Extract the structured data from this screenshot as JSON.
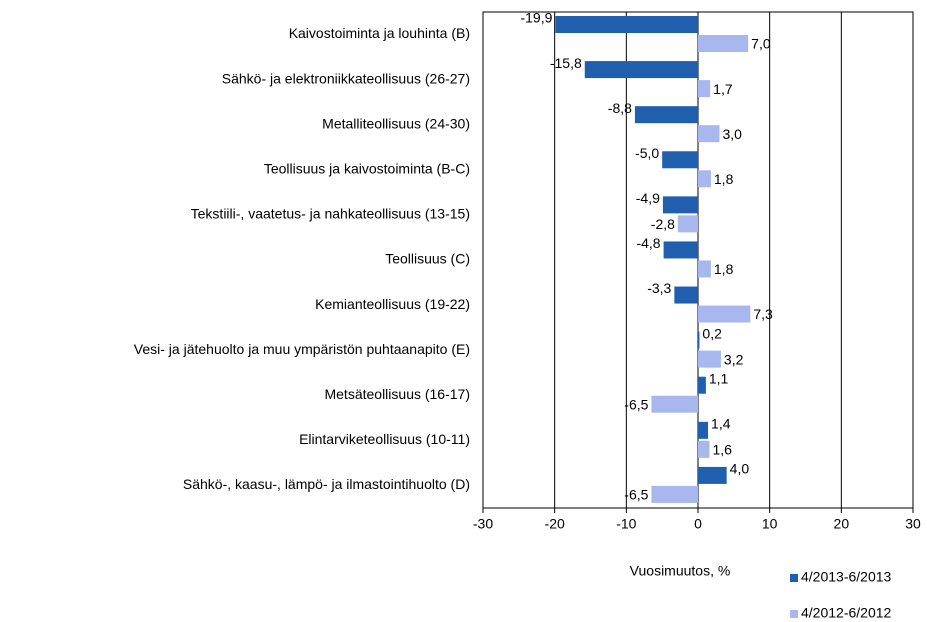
{
  "chart_data": {
    "type": "bar",
    "orientation": "horizontal",
    "categories": [
      "Kaivostoiminta ja louhinta (B)",
      "Sähkö- ja elektroniikkateollisuus (26-27)",
      "Metalliteollisuus (24-30)",
      "Teollisuus ja kaivostoiminta (B-C)",
      "Tekstiili-, vaatetus- ja nahkateollisuus (13-15)",
      "Teollisuus (C)",
      "Kemianteollisuus (19-22)",
      "Vesi- ja jätehuolto ja muu ympäristön puhtaanapito (E)",
      "Metsäteollisuus (16-17)",
      "Elintarviketeollisuus (10-11)",
      "Sähkö-, kaasu-, lämpö- ja ilmastointihuolto (D)"
    ],
    "series": [
      {
        "name": "4/2013-6/2013",
        "color": "#1f5fae",
        "values": [
          -19.9,
          -15.8,
          -8.8,
          -5.0,
          -4.9,
          -4.8,
          -3.3,
          0.2,
          1.1,
          1.4,
          4.0
        ],
        "value_labels": [
          "-19,9",
          "-15,8",
          "-8,8",
          "-5,0",
          "-4,9",
          "-4,8",
          "-3,3",
          "0,2",
          "1,1",
          "1,4",
          "4,0"
        ]
      },
      {
        "name": "4/2012-6/2012",
        "color": "#a8b8ee",
        "values": [
          7.0,
          1.7,
          3.0,
          1.8,
          -2.8,
          1.8,
          7.3,
          3.2,
          -6.5,
          1.6,
          -6.5
        ],
        "value_labels": [
          "7,0",
          "1,7",
          "3,0",
          "1,8",
          "-2,8",
          "1,8",
          "7,3",
          "3,2",
          "-6,5",
          "1,6",
          "-6,5"
        ]
      }
    ],
    "xlabel": "Vuosimuutos, %",
    "xlim": [
      -30,
      30
    ],
    "xticks": [
      -30,
      -20,
      -10,
      0,
      10,
      20,
      30
    ],
    "grid": true
  }
}
